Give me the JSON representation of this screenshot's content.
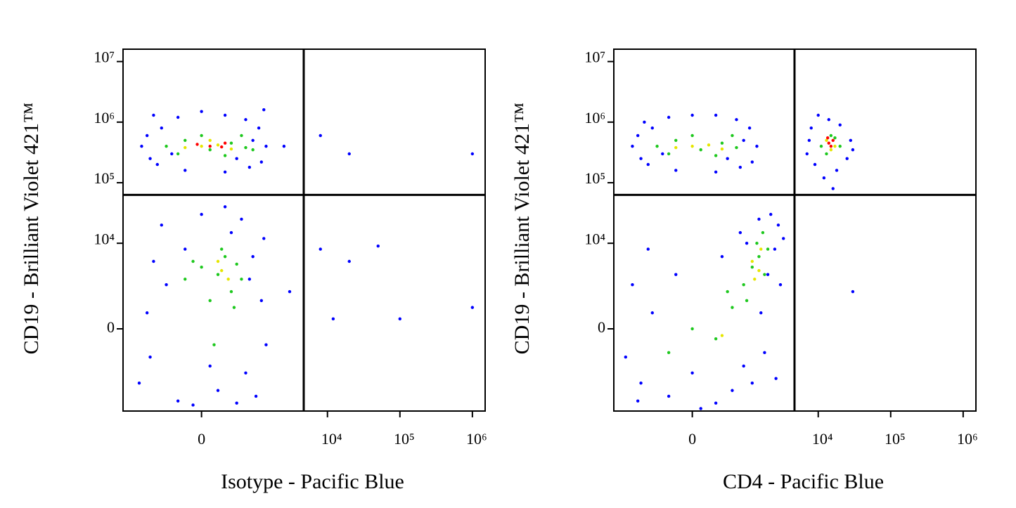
{
  "chart_data": [
    {
      "type": "scatter",
      "xlabel": "Isotype - Pacific Blue",
      "ylabel": "CD19 - Brilliant Violet 421™",
      "xscale": "asinh",
      "yscale": "asinh",
      "xlim": [
        -2200,
        1500000
      ],
      "ylim": [
        -8800,
        16000000
      ],
      "xticks": [
        0,
        {
          "value": 10000,
          "label": "10⁴"
        },
        {
          "value": 100000,
          "label": "10⁵"
        },
        {
          "value": 1000000,
          "label": "10⁶"
        }
      ],
      "yticks": [
        0,
        {
          "value": 10000,
          "label": "10⁴"
        },
        {
          "value": 100000,
          "label": "10⁵"
        },
        {
          "value": 1000000,
          "label": "10⁶"
        },
        {
          "value": 10000000,
          "label": "10⁷"
        }
      ],
      "quadrant": {
        "x": 4700,
        "y": 63000
      },
      "series": [
        {
          "color": "#0000ff",
          "x": [
            -1200,
            -900,
            -600,
            -300,
            0,
            300,
            700,
            1100,
            1400,
            1200,
            800,
            300,
            -200,
            -700,
            -1000,
            -400,
            900,
            500,
            -800,
            1300,
            2500,
            8000,
            20000,
            1000000,
            -1300,
            -1000,
            -800,
            -600,
            -300,
            0,
            200,
            400,
            700,
            900,
            1200,
            1400,
            -500,
            100,
            600,
            1000,
            -200,
            300,
            -900,
            800,
            1300,
            -100,
            500,
            3000,
            8000,
            20000,
            50000,
            100000,
            1000000,
            12000
          ],
          "values": [
            400000,
            250000,
            800000,
            1200000,
            1500000,
            1300000,
            1100000,
            800000,
            400000,
            220000,
            180000,
            150000,
            160000,
            200000,
            600000,
            300000,
            500000,
            250000,
            1300000,
            1600000,
            400000,
            600000,
            300000,
            300000,
            -3000,
            500,
            5000,
            20000,
            -6000,
            30000,
            -4000,
            15000,
            -2000,
            6000,
            1000,
            -500,
            2000,
            -1500,
            25000,
            -5000,
            8000,
            40000,
            -1000,
            2500,
            12000,
            -7000,
            -6500,
            1500,
            8000,
            5000,
            9000,
            300,
            700,
            300
          ]
        },
        {
          "color": "#1ec81e",
          "x": [
            -500,
            -200,
            100,
            400,
            700,
            0,
            300,
            -300,
            600,
            900,
            -200,
            0,
            200,
            400,
            300,
            500,
            100,
            -100,
            600,
            250,
            150,
            450
          ],
          "values": [
            400000,
            500000,
            350000,
            450000,
            380000,
            600000,
            280000,
            300000,
            600000,
            350000,
            2500,
            4000,
            3000,
            1500,
            6000,
            4500,
            1000,
            5000,
            2500,
            8000,
            -500,
            700
          ]
        },
        {
          "color": "#e6e600",
          "x": [
            0,
            200,
            -200,
            400,
            100,
            250,
            350,
            200
          ],
          "values": [
            400000,
            420000,
            380000,
            360000,
            500000,
            3500,
            2500,
            5000
          ]
        },
        {
          "color": "#ff0000",
          "x": [
            100,
            250,
            -50,
            300
          ],
          "values": [
            400000,
            390000,
            430000,
            450000
          ]
        }
      ]
    },
    {
      "type": "scatter",
      "xlabel": "CD4 - Pacific Blue",
      "ylabel": "CD19 - Brilliant Violet 421™",
      "xscale": "asinh",
      "yscale": "asinh",
      "xlim": [
        -2200,
        1500000
      ],
      "ylim": [
        -8800,
        16000000
      ],
      "xticks": [
        0,
        {
          "value": 10000,
          "label": "10⁴"
        },
        {
          "value": 100000,
          "label": "10⁵"
        },
        {
          "value": 1000000,
          "label": "10⁶"
        }
      ],
      "yticks": [
        0,
        {
          "value": 10000,
          "label": "10⁴"
        },
        {
          "value": 100000,
          "label": "10⁵"
        },
        {
          "value": 1000000,
          "label": "10⁶"
        },
        {
          "value": 10000000,
          "label": "10⁷"
        }
      ],
      "quadrant": {
        "x": 4700,
        "y": 63000
      },
      "series": [
        {
          "color": "#0000ff",
          "x": [
            -1200,
            -900,
            -600,
            -300,
            0,
            300,
            700,
            1100,
            1400,
            1200,
            800,
            300,
            -200,
            -700,
            -1000,
            -400,
            900,
            500,
            -800,
            7000,
            8000,
            10000,
            14000,
            20000,
            28000,
            25000,
            18000,
            12000,
            9000,
            16000,
            7500,
            30000,
            -1500,
            -1200,
            -900,
            -600,
            -300,
            0,
            300,
            600,
            900,
            1200,
            1600,
            2000,
            2500,
            2800,
            2200,
            1500,
            800,
            400,
            -200,
            -700,
            1800,
            3000,
            3300,
            -1000,
            100,
            1000,
            2600,
            30000
          ],
          "values": [
            400000,
            250000,
            800000,
            1200000,
            1300000,
            1300000,
            1100000,
            800000,
            400000,
            220000,
            180000,
            150000,
            160000,
            200000,
            600000,
            300000,
            500000,
            250000,
            1000000,
            300000,
            800000,
            1300000,
            1100000,
            900000,
            500000,
            250000,
            160000,
            120000,
            200000,
            80000,
            500000,
            350000,
            -1000,
            2000,
            -3000,
            500,
            -5000,
            -2000,
            -6500,
            -4000,
            -1500,
            -3000,
            500,
            3000,
            8000,
            20000,
            30000,
            25000,
            15000,
            6000,
            3000,
            8000,
            -800,
            2000,
            12000,
            -6000,
            -8000,
            10000,
            -2500,
            1500
          ]
        },
        {
          "color": "#1ec81e",
          "x": [
            -500,
            -200,
            100,
            400,
            700,
            0,
            300,
            -300,
            600,
            11000,
            15000,
            20000,
            13000,
            17000,
            0,
            300,
            600,
            900,
            1200,
            1500,
            1800,
            1400,
            1000,
            -300,
            500,
            2000,
            1700
          ],
          "values": [
            400000,
            500000,
            350000,
            450000,
            380000,
            600000,
            280000,
            300000,
            600000,
            400000,
            600000,
            400000,
            300000,
            550000,
            0,
            -300,
            700,
            2000,
            4000,
            6000,
            3000,
            10000,
            1000,
            -800,
            1500,
            8000,
            15000
          ]
        },
        {
          "color": "#e6e600",
          "x": [
            0,
            200,
            -200,
            400,
            13000,
            17000,
            15000,
            1200,
            1500,
            1600,
            1300,
            400
          ],
          "values": [
            400000,
            420000,
            380000,
            360000,
            500000,
            400000,
            350000,
            5000,
            3500,
            8000,
            2500,
            -200
          ]
        },
        {
          "color": "#ff0000",
          "x": [
            14000,
            16000,
            15000,
            13500
          ],
          "values": [
            450000,
            500000,
            400000,
            550000
          ]
        }
      ]
    }
  ]
}
